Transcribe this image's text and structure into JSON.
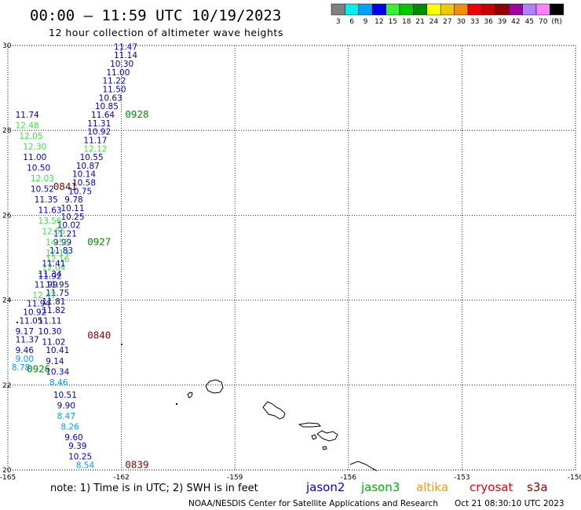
{
  "title": "00:00 – 11:59 UTC 10/19/2023",
  "subtitle": "12 hour collection of altimeter wave heights",
  "scale": {
    "colors": [
      "#808080",
      "#00eeee",
      "#00a0ff",
      "#0000ee",
      "#38f038",
      "#00c800",
      "#008c00",
      "#ffff00",
      "#f0c800",
      "#f09000",
      "#ee0000",
      "#c80000",
      "#8c0000",
      "#a000a0",
      "#b080ff",
      "#ff80ff",
      "#000000"
    ],
    "labels": [
      "3",
      "6",
      "9",
      "12",
      "15",
      "18",
      "21",
      "24",
      "27",
      "30",
      "33",
      "36",
      "39",
      "42",
      "45",
      "70",
      "(ft)"
    ]
  },
  "axes": {
    "lon_ticks": [
      -165,
      -162,
      -159,
      -156,
      -153,
      -150
    ],
    "lon_labels": [
      "-165",
      "-162",
      "-159",
      "-156",
      "-153",
      "-150"
    ],
    "lat_ticks": [
      20,
      22,
      24,
      26,
      28,
      30
    ],
    "lat_labels": [
      "20",
      "22",
      "24",
      "26",
      "28",
      "30"
    ],
    "lon_range": [
      -165,
      -150
    ],
    "lat_range": [
      20,
      30
    ]
  },
  "readings": [
    {
      "lon": -162.2,
      "lat": 29.9,
      "v": "11.47",
      "c": "#0000cc"
    },
    {
      "lon": -162.2,
      "lat": 29.7,
      "v": "11.14",
      "c": "#0000cc"
    },
    {
      "lon": -162.3,
      "lat": 29.5,
      "v": "10.30",
      "c": "#0000cc"
    },
    {
      "lon": -162.4,
      "lat": 29.3,
      "v": "11.00",
      "c": "#0000cc"
    },
    {
      "lon": -162.5,
      "lat": 29.1,
      "v": "11.22",
      "c": "#0000cc"
    },
    {
      "lon": -162.5,
      "lat": 28.9,
      "v": "11.50",
      "c": "#0000cc"
    },
    {
      "lon": -162.6,
      "lat": 28.7,
      "v": "10.63",
      "c": "#0000cc"
    },
    {
      "lon": -162.7,
      "lat": 28.5,
      "v": "10.85",
      "c": "#0000cc"
    },
    {
      "lon": -162.8,
      "lat": 28.3,
      "v": "11.64",
      "c": "#0000cc"
    },
    {
      "lon": -162.9,
      "lat": 28.1,
      "v": "11.31",
      "c": "#0000cc"
    },
    {
      "lon": -162.9,
      "lat": 27.9,
      "v": "10.92",
      "c": "#0000cc"
    },
    {
      "lon": -163.0,
      "lat": 27.7,
      "v": "11.17",
      "c": "#0000cc"
    },
    {
      "lon": -163.0,
      "lat": 27.5,
      "v": "12.12",
      "c": "#40e040"
    },
    {
      "lon": -163.1,
      "lat": 27.3,
      "v": "10.55",
      "c": "#0000cc"
    },
    {
      "lon": -163.2,
      "lat": 27.1,
      "v": "10.87",
      "c": "#0000cc"
    },
    {
      "lon": -163.3,
      "lat": 26.9,
      "v": "10.14",
      "c": "#0000cc"
    },
    {
      "lon": -163.3,
      "lat": 26.7,
      "v": "10.58",
      "c": "#0000cc"
    },
    {
      "lon": -163.4,
      "lat": 26.5,
      "v": "10.75",
      "c": "#0000cc"
    },
    {
      "lon": -163.5,
      "lat": 26.3,
      "v": "9.78",
      "c": "#0000cc"
    },
    {
      "lon": -163.6,
      "lat": 26.1,
      "v": "10.11",
      "c": "#0000cc"
    },
    {
      "lon": -163.6,
      "lat": 25.9,
      "v": "10.25",
      "c": "#0000cc"
    },
    {
      "lon": -163.7,
      "lat": 25.7,
      "v": "10.02",
      "c": "#0000cc"
    },
    {
      "lon": -163.8,
      "lat": 25.5,
      "v": "11.21",
      "c": "#0000cc"
    },
    {
      "lon": -163.8,
      "lat": 25.3,
      "v": "9.99",
      "c": "#0000cc"
    },
    {
      "lon": -163.9,
      "lat": 25.1,
      "v": "11.83",
      "c": "#0000cc"
    },
    {
      "lon": -164.0,
      "lat": 24.9,
      "v": "12.16",
      "c": "#40e040"
    },
    {
      "lon": -164.1,
      "lat": 24.7,
      "v": "12.04",
      "c": "#40e040"
    },
    {
      "lon": -164.2,
      "lat": 24.5,
      "v": "11.92",
      "c": "#0000cc"
    },
    {
      "lon": -164.0,
      "lat": 24.3,
      "v": "11.95",
      "c": "#0000cc"
    },
    {
      "lon": -164.0,
      "lat": 24.1,
      "v": "11.75",
      "c": "#0000cc"
    },
    {
      "lon": -164.1,
      "lat": 23.9,
      "v": "11.81",
      "c": "#0000cc"
    },
    {
      "lon": -164.1,
      "lat": 23.7,
      "v": "11.82",
      "c": "#0000cc"
    },
    {
      "lon": -164.2,
      "lat": 23.45,
      "v": "11.11",
      "c": "#0000cc"
    },
    {
      "lon": -164.2,
      "lat": 23.2,
      "v": "10.30",
      "c": "#0000cc"
    },
    {
      "lon": -164.1,
      "lat": 22.95,
      "v": "11.02",
      "c": "#0000cc"
    },
    {
      "lon": -164.0,
      "lat": 22.75,
      "v": "10.41",
      "c": "#0000cc"
    },
    {
      "lon": -164.0,
      "lat": 22.5,
      "v": "9.14",
      "c": "#0000cc"
    },
    {
      "lon": -164.0,
      "lat": 22.25,
      "v": "10.34",
      "c": "#0000cc"
    },
    {
      "lon": -163.9,
      "lat": 22.0,
      "v": "8.46",
      "c": "#00a0ff"
    },
    {
      "lon": -163.8,
      "lat": 21.7,
      "v": "10.51",
      "c": "#0000cc"
    },
    {
      "lon": -163.7,
      "lat": 21.45,
      "v": "9.90",
      "c": "#0000cc"
    },
    {
      "lon": -163.7,
      "lat": 21.2,
      "v": "8.47",
      "c": "#00a0ff"
    },
    {
      "lon": -163.6,
      "lat": 20.95,
      "v": "8.26",
      "c": "#00a0ff"
    },
    {
      "lon": -163.5,
      "lat": 20.7,
      "v": "9.60",
      "c": "#0000cc"
    },
    {
      "lon": -163.4,
      "lat": 20.5,
      "v": "9.39",
      "c": "#0000cc"
    },
    {
      "lon": -163.4,
      "lat": 20.25,
      "v": "10.25",
      "c": "#0000cc"
    },
    {
      "lon": -163.2,
      "lat": 20.05,
      "v": "8.54",
      "c": "#00a0ff"
    },
    {
      "lon": -164.8,
      "lat": 28.3,
      "v": "11.74",
      "c": "#0000cc"
    },
    {
      "lon": -164.8,
      "lat": 28.05,
      "v": "12.48",
      "c": "#40e040"
    },
    {
      "lon": -164.7,
      "lat": 27.8,
      "v": "12.05",
      "c": "#40e040"
    },
    {
      "lon": -164.6,
      "lat": 27.55,
      "v": "12.30",
      "c": "#40e040"
    },
    {
      "lon": -164.6,
      "lat": 27.3,
      "v": "11.00",
      "c": "#0000cc"
    },
    {
      "lon": -164.5,
      "lat": 27.05,
      "v": "10.50",
      "c": "#0000cc"
    },
    {
      "lon": -164.4,
      "lat": 26.8,
      "v": "12.03",
      "c": "#40e040"
    },
    {
      "lon": -164.4,
      "lat": 26.55,
      "v": "10.52",
      "c": "#0000cc"
    },
    {
      "lon": -164.3,
      "lat": 26.3,
      "v": "11.35",
      "c": "#0000cc"
    },
    {
      "lon": -164.2,
      "lat": 26.05,
      "v": "11.63",
      "c": "#0000cc"
    },
    {
      "lon": -164.2,
      "lat": 25.8,
      "v": "13.56",
      "c": "#40e040"
    },
    {
      "lon": -164.1,
      "lat": 25.55,
      "v": "12.55",
      "c": "#40e040"
    },
    {
      "lon": -164.0,
      "lat": 25.3,
      "v": "14.55",
      "c": "#40e040"
    },
    {
      "lon": -164.0,
      "lat": 25.05,
      "v": "12.14",
      "c": "#40e040"
    },
    {
      "lon": -164.1,
      "lat": 24.8,
      "v": "11.41",
      "c": "#0000cc"
    },
    {
      "lon": -164.2,
      "lat": 24.55,
      "v": "11.34",
      "c": "#0000cc"
    },
    {
      "lon": -164.3,
      "lat": 24.3,
      "v": "11.99",
      "c": "#0000cc"
    },
    {
      "lon": -164.35,
      "lat": 24.05,
      "v": "12.47",
      "c": "#40e040"
    },
    {
      "lon": -164.5,
      "lat": 23.85,
      "v": "11.94",
      "c": "#0000cc"
    },
    {
      "lon": -164.6,
      "lat": 23.65,
      "v": "10.92",
      "c": "#0000cc"
    },
    {
      "lon": -164.7,
      "lat": 23.45,
      "v": "11.05",
      "c": "#0000cc"
    },
    {
      "lon": -164.8,
      "lat": 23.2,
      "v": "9.17",
      "c": "#0000cc"
    },
    {
      "lon": -164.8,
      "lat": 23.0,
      "v": "11.37",
      "c": "#0000cc"
    },
    {
      "lon": -164.8,
      "lat": 22.75,
      "v": "9.46",
      "c": "#0000cc"
    },
    {
      "lon": -164.8,
      "lat": 22.55,
      "v": "9.00",
      "c": "#00a0ff"
    },
    {
      "lon": -164.9,
      "lat": 22.35,
      "v": "8.78",
      "c": "#00a0ff"
    }
  ],
  "pass_labels": [
    {
      "lon": -161.9,
      "lat": 28.3,
      "v": "0928",
      "c": "#008c00"
    },
    {
      "lon": -163.8,
      "lat": 26.6,
      "v": "0841",
      "c": "#8c0000"
    },
    {
      "lon": -162.9,
      "lat": 25.3,
      "v": "0927",
      "c": "#008c00"
    },
    {
      "lon": -162.9,
      "lat": 23.1,
      "v": "0840",
      "c": "#8c0000"
    },
    {
      "lon": -164.5,
      "lat": 22.3,
      "v": "0926",
      "c": "#008c00"
    },
    {
      "lon": -161.9,
      "lat": 20.05,
      "v": "0839",
      "c": "#8c0000"
    }
  ],
  "note": "note: 1) Time is in UTC; 2) SWH is in feet",
  "satellites": [
    {
      "name": "jason2",
      "color": "#0000ee"
    },
    {
      "name": "jason3",
      "color": "#00b000"
    },
    {
      "name": "altika",
      "color": "#ff9900"
    },
    {
      "name": "cryosat",
      "color": "#ee0000"
    },
    {
      "name": "s3a",
      "color": "#8c0000"
    }
  ],
  "credit_left": "NOAA/NESDIS Center for Satellite Applications and Research",
  "credit_right": "Oct 21 08:30:10 UTC 2023"
}
